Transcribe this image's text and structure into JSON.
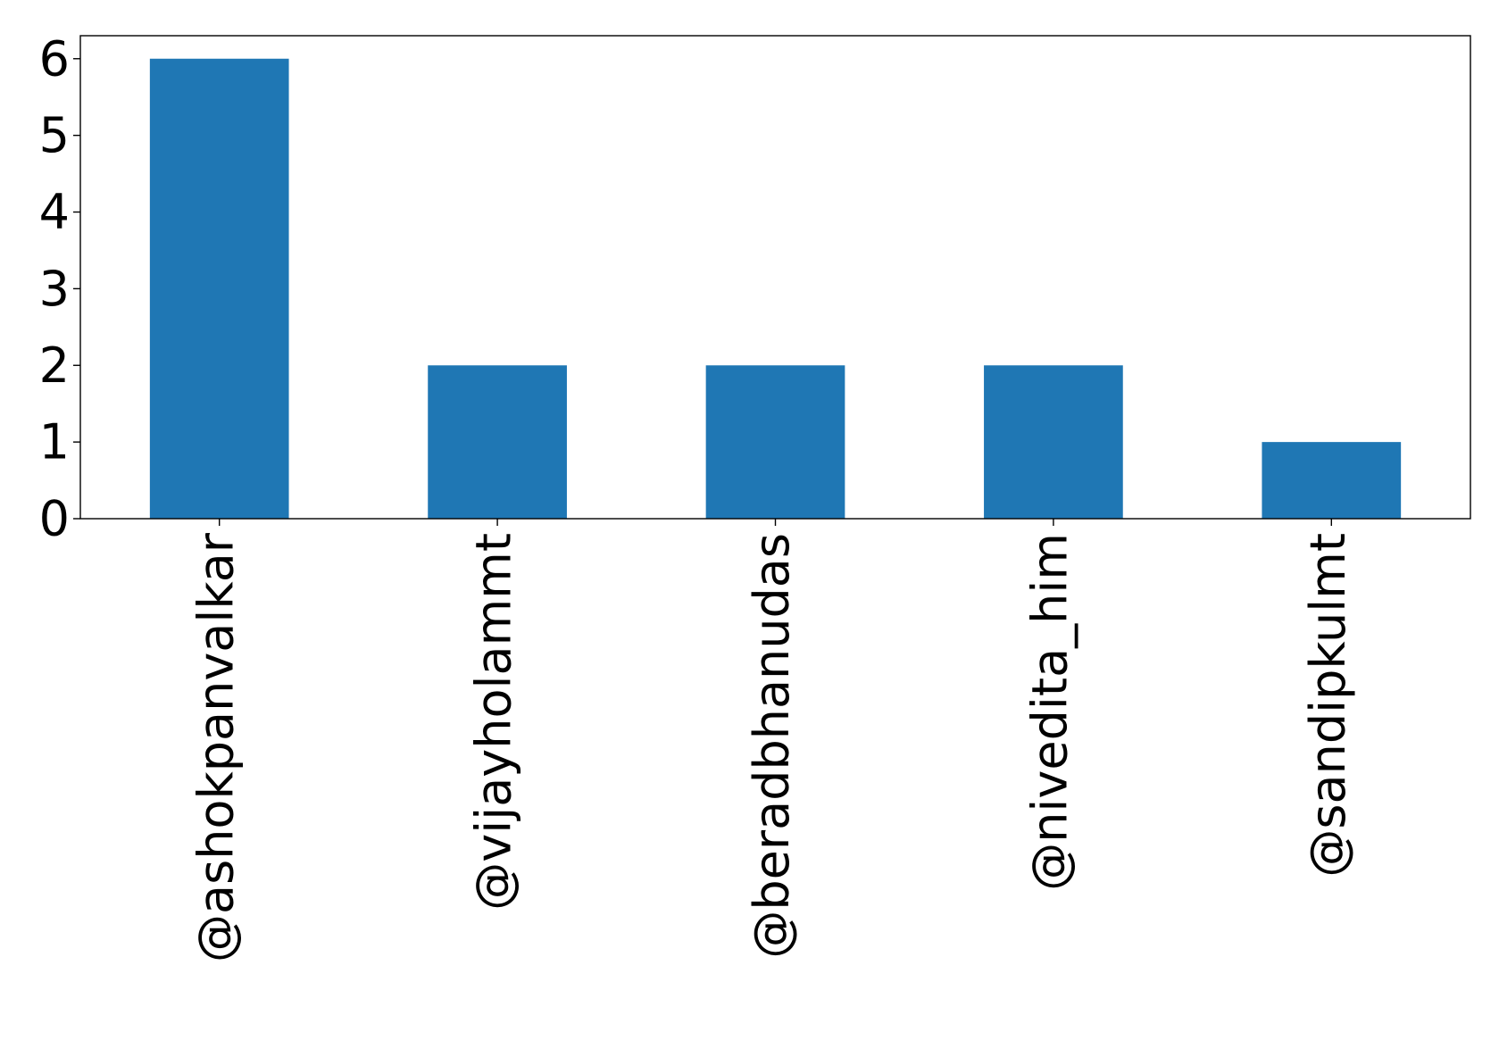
{
  "chart_data": {
    "type": "bar",
    "title": "",
    "xlabel": "",
    "ylabel": "",
    "categories": [
      "@ashokpanvalkar",
      "@vijayholammt",
      "@beradbhanudas",
      "@nivedita_him",
      "@sandipkulmt"
    ],
    "values": [
      6,
      2,
      2,
      2,
      1
    ],
    "ylim": [
      0,
      6.3
    ],
    "yticks": [
      "0",
      "1",
      "2",
      "3",
      "4",
      "5",
      "6"
    ],
    "xtick_rotation": "vertical",
    "grid": false,
    "legend": "none",
    "bar_color": "#1f77b4"
  }
}
